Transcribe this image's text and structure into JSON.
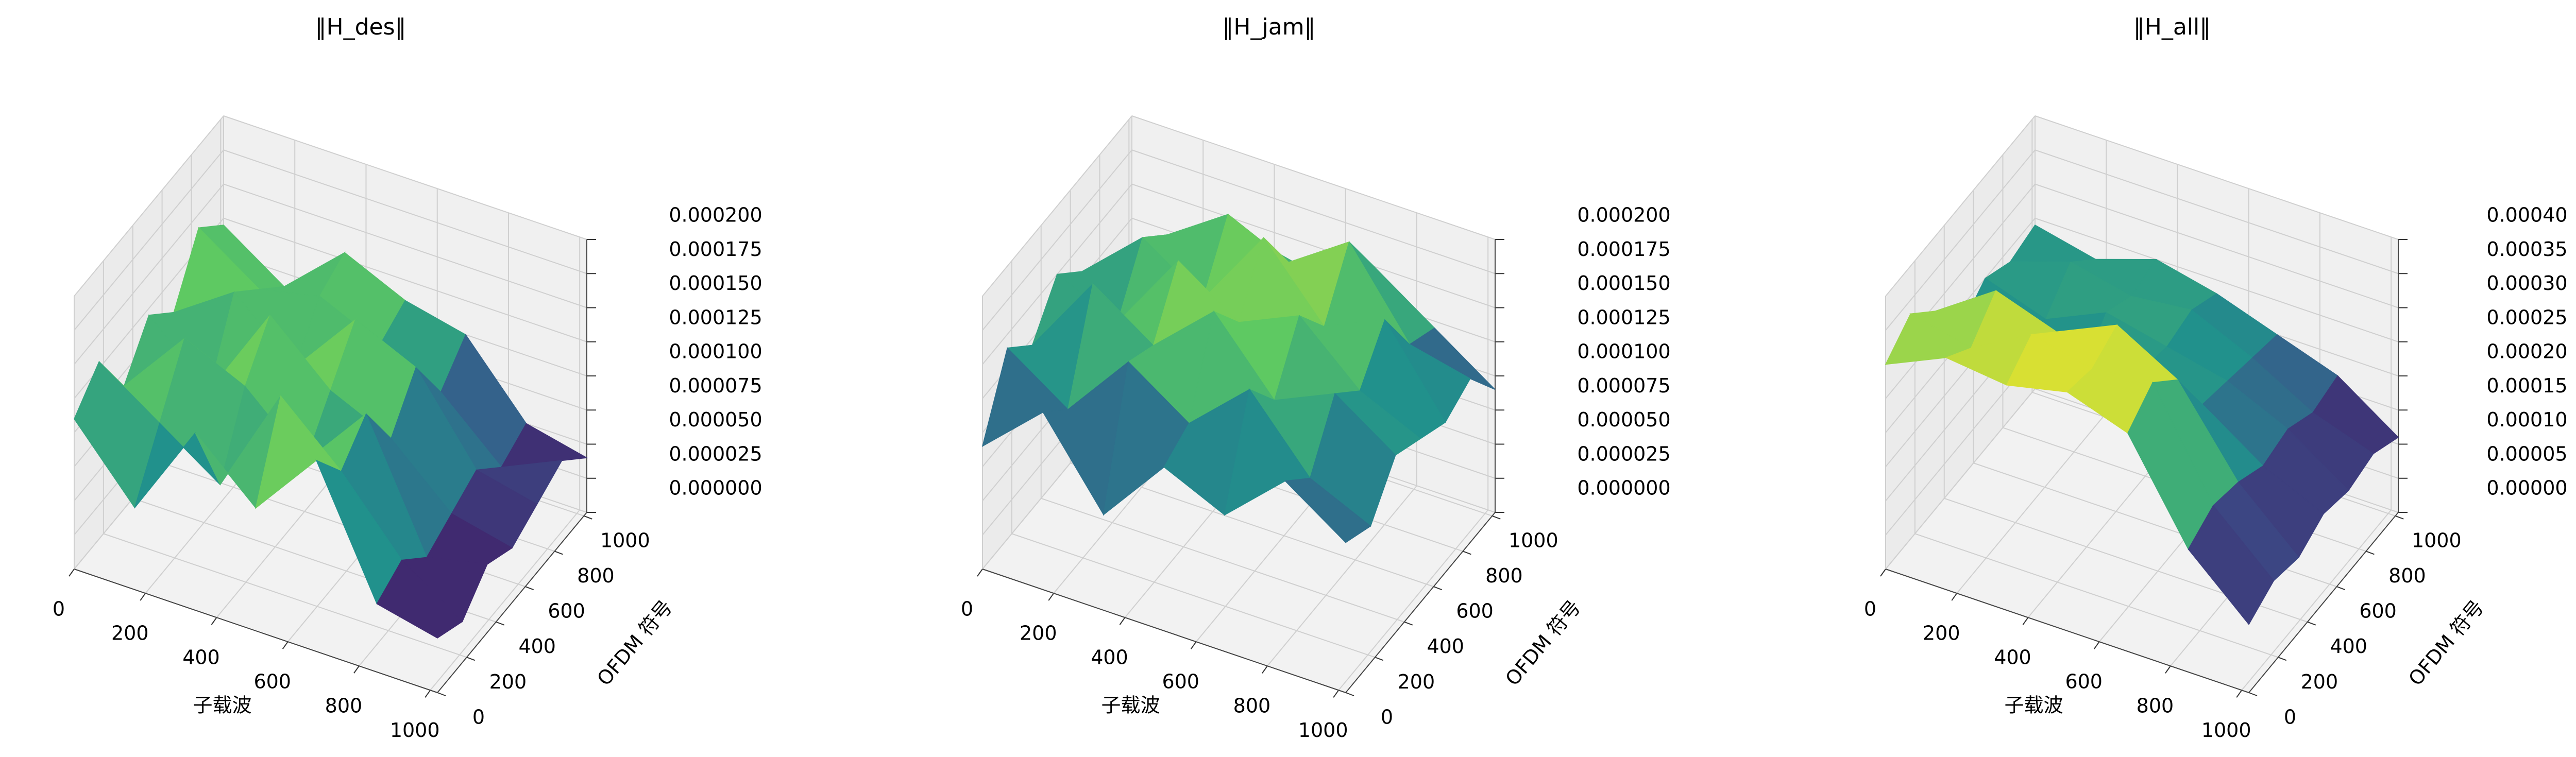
{
  "chart_data": [
    {
      "type": "surface",
      "title": "‖H_des‖",
      "xlabel": "子载波",
      "ylabel": "OFDM 符号",
      "colormap": "viridis",
      "x": [
        0,
        170,
        340,
        510,
        680,
        850,
        1020
      ],
      "y": [
        0,
        170,
        340,
        510,
        680,
        850,
        1020
      ],
      "z": [
        [
          0.00011,
          6e-05,
          0.00013,
          9e-05,
          0.00014,
          5e-05,
          4e-05
        ],
        [
          0.00013,
          0.0001,
          7e-05,
          0.00015,
          0.00011,
          6e-05,
          3e-05
        ],
        [
          9e-05,
          0.00014,
          0.00012,
          8e-05,
          0.00013,
          4e-05,
          5e-05
        ],
        [
          0.00012,
          8e-05,
          0.00015,
          0.00011,
          9e-05,
          5e-05,
          4e-05
        ],
        [
          0.0001,
          0.00013,
          9e-05,
          0.00014,
          0.00012,
          6e-05,
          5e-05
        ],
        [
          0.00014,
          0.00011,
          0.00012,
          0.0001,
          8e-05,
          4e-05,
          6e-05
        ],
        [
          0.00012,
          9e-05,
          0.00013,
          0.00011,
          0.0001,
          5e-05,
          4e-05
        ]
      ],
      "xlim": [
        0,
        1020
      ],
      "ylim": [
        0,
        1020
      ],
      "zlim": [
        0,
        0.0002
      ],
      "xticks": [
        0,
        200,
        400,
        600,
        800,
        1000
      ],
      "yticks": [
        0,
        200,
        400,
        600,
        800,
        1000
      ],
      "zticks": [
        {
          "value": 0,
          "label": "0.000000"
        },
        {
          "value": 2.5e-05,
          "label": "0.000025"
        },
        {
          "value": 5e-05,
          "label": "0.000050"
        },
        {
          "value": 7.5e-05,
          "label": "0.000075"
        },
        {
          "value": 0.0001,
          "label": "0.000100"
        },
        {
          "value": 0.000125,
          "label": "0.000125"
        },
        {
          "value": 0.00015,
          "label": "0.000150"
        },
        {
          "value": 0.000175,
          "label": "0.000175"
        },
        {
          "value": 0.0002,
          "label": "0.000200"
        }
      ]
    },
    {
      "type": "surface",
      "title": "‖H_jam‖",
      "xlabel": "子载波",
      "ylabel": "OFDM 符号",
      "colormap": "viridis",
      "x": [
        0,
        170,
        340,
        510,
        680,
        850,
        1020
      ],
      "y": [
        0,
        170,
        340,
        510,
        680,
        850,
        1020
      ],
      "z": [
        [
          9e-05,
          0.00013,
          7e-05,
          0.00012,
          0.0001,
          0.00014,
          0.00011
        ],
        [
          0.00014,
          0.00011,
          0.00016,
          0.00013,
          0.00017,
          0.00012,
          0.0001
        ],
        [
          0.00012,
          0.00018,
          0.00015,
          0.00019,
          0.00014,
          0.00016,
          0.00013
        ],
        [
          0.00015,
          0.00013,
          0.00019,
          0.00016,
          0.00018,
          0.00014,
          0.00012
        ],
        [
          0.00013,
          0.00017,
          0.00014,
          0.0002,
          0.00015,
          0.00017,
          0.00011
        ],
        [
          0.00011,
          0.00015,
          0.00018,
          0.00016,
          0.00019,
          0.00013,
          0.00012
        ],
        [
          0.0001,
          0.00012,
          0.00014,
          0.00013,
          0.00015,
          0.00012,
          9e-05
        ]
      ],
      "xlim": [
        0,
        1020
      ],
      "ylim": [
        0,
        1020
      ],
      "zlim": [
        0,
        0.0002
      ],
      "xticks": [
        0,
        200,
        400,
        600,
        800,
        1000
      ],
      "yticks": [
        0,
        200,
        400,
        600,
        800,
        1000
      ],
      "zticks": [
        {
          "value": 0,
          "label": "0.000000"
        },
        {
          "value": 2.5e-05,
          "label": "0.000025"
        },
        {
          "value": 5e-05,
          "label": "0.000050"
        },
        {
          "value": 7.5e-05,
          "label": "0.000075"
        },
        {
          "value": 0.0001,
          "label": "0.000100"
        },
        {
          "value": 0.000125,
          "label": "0.000125"
        },
        {
          "value": 0.00015,
          "label": "0.000150"
        },
        {
          "value": 0.000175,
          "label": "0.000175"
        },
        {
          "value": 0.0002,
          "label": "0.000200"
        }
      ]
    },
    {
      "type": "surface",
      "title": "‖H_all‖",
      "xlabel": "子载波",
      "ylabel": "OFDM 符号",
      "colormap": "viridis",
      "x": [
        0,
        170,
        340,
        510,
        680,
        850,
        1020
      ],
      "y": [
        0,
        170,
        340,
        510,
        680,
        850,
        1020
      ],
      "z": [
        [
          0.0003,
          0.00034,
          0.00033,
          0.00035,
          0.00032,
          0.00018,
          0.0001
        ],
        [
          0.00033,
          0.00031,
          0.00036,
          0.00034,
          0.00035,
          0.0002,
          0.00012
        ],
        [
          0.00029,
          0.00035,
          0.00032,
          0.00036,
          0.00031,
          0.00019,
          0.00011
        ],
        [
          0.00022,
          0.00024,
          0.00021,
          0.00025,
          0.00023,
          0.00017,
          0.00013
        ],
        [
          0.00025,
          0.00022,
          0.00026,
          0.00024,
          0.00022,
          0.00018,
          0.00012
        ],
        [
          0.00023,
          0.00026,
          0.00024,
          0.00025,
          0.00021,
          0.00016,
          0.00013
        ],
        [
          0.00024,
          0.00022,
          0.00025,
          0.00023,
          0.0002,
          0.00017,
          0.00011
        ]
      ],
      "xlim": [
        0,
        1020
      ],
      "ylim": [
        0,
        1020
      ],
      "zlim": [
        0,
        0.0004
      ],
      "xticks": [
        0,
        200,
        400,
        600,
        800,
        1000
      ],
      "yticks": [
        0,
        200,
        400,
        600,
        800,
        1000
      ],
      "zticks": [
        {
          "value": 0,
          "label": "0.00000"
        },
        {
          "value": 5e-05,
          "label": "0.00005"
        },
        {
          "value": 0.0001,
          "label": "0.00010"
        },
        {
          "value": 0.00015,
          "label": "0.00015"
        },
        {
          "value": 0.0002,
          "label": "0.00020"
        },
        {
          "value": 0.00025,
          "label": "0.00025"
        },
        {
          "value": 0.0003,
          "label": "0.00030"
        },
        {
          "value": 0.00035,
          "label": "0.00035"
        },
        {
          "value": 0.0004,
          "label": "0.00040"
        }
      ]
    }
  ]
}
